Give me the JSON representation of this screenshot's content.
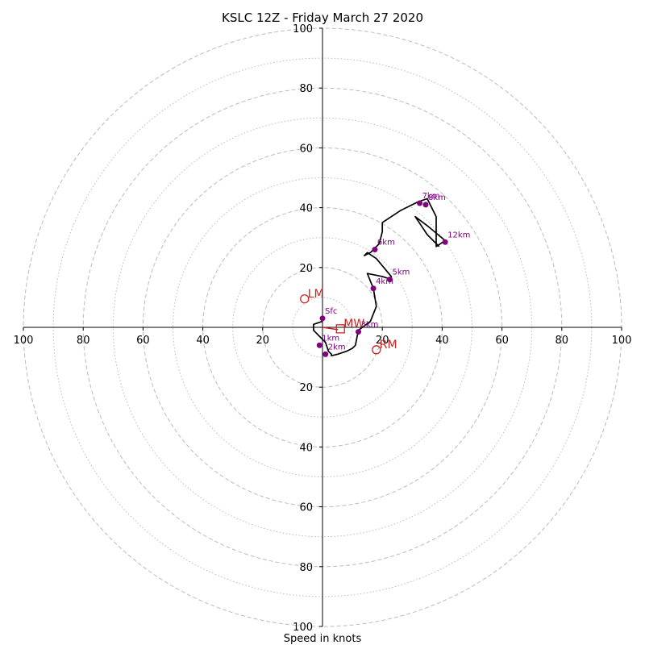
{
  "chart_data": {
    "type": "hodograph",
    "title": "KSLC 12Z - Friday March 27 2020",
    "xlabel": "Speed in knots",
    "ylabel": "",
    "range": 100,
    "ring_step_major": 20,
    "ring_step_minor": 10,
    "grid": true,
    "axis_ticks": {
      "x": [
        "100",
        "80",
        "60",
        "40",
        "20",
        "20",
        "40",
        "60",
        "80",
        "100"
      ],
      "y_top": [
        "100",
        "80",
        "60",
        "40",
        "20"
      ],
      "y_bottom": [
        "20",
        "40",
        "60",
        "80",
        "100"
      ]
    },
    "trace": [
      [
        0,
        -2
      ],
      [
        -3,
        -1
      ],
      [
        -3,
        1
      ],
      [
        -1,
        3
      ],
      [
        1,
        5
      ],
      [
        2,
        8
      ],
      [
        3,
        9
      ],
      [
        3,
        9.5
      ],
      [
        5,
        9
      ],
      [
        8,
        8
      ],
      [
        10,
        7
      ],
      [
        11,
        6
      ],
      [
        12,
        1
      ],
      [
        16,
        -2
      ],
      [
        18,
        -7
      ],
      [
        17,
        -13
      ],
      [
        15,
        -18
      ],
      [
        20,
        -17
      ],
      [
        23,
        -16
      ],
      [
        23,
        -17
      ],
      [
        18,
        -23
      ],
      [
        15,
        -25
      ],
      [
        14,
        -24
      ],
      [
        16,
        -25
      ],
      [
        19,
        -28
      ],
      [
        20,
        -32
      ],
      [
        20,
        -35
      ],
      [
        26,
        -39
      ],
      [
        30,
        -41
      ],
      [
        32,
        -42
      ],
      [
        35,
        -43
      ],
      [
        38,
        -37
      ],
      [
        38,
        -27
      ],
      [
        41,
        -29
      ],
      [
        35,
        -34
      ],
      [
        31,
        -37
      ],
      [
        35,
        -31
      ],
      [
        39,
        -27
      ]
    ],
    "height_points": [
      {
        "label": "Sfc",
        "x": 0,
        "y": -3
      },
      {
        "label": "1km",
        "x": -1,
        "y": 6
      },
      {
        "label": "2km",
        "x": 1,
        "y": 9
      },
      {
        "label": "3km",
        "x": 12,
        "y": 1.5
      },
      {
        "label": "4km",
        "x": 17,
        "y": -13
      },
      {
        "label": "5km",
        "x": 22.5,
        "y": -16
      },
      {
        "label": "6km",
        "x": 17.5,
        "y": -26
      },
      {
        "label": "7km",
        "x": 32.5,
        "y": -41.5
      },
      {
        "label": "8km",
        "x": 34.5,
        "y": -41
      },
      {
        "label": "12km",
        "x": 41,
        "y": -28.5
      }
    ],
    "motion_points": [
      {
        "label": "LM",
        "x": -6,
        "y": -9.5,
        "marker": "circle"
      },
      {
        "label": "RM",
        "x": 18,
        "y": 7.5,
        "marker": "circle"
      },
      {
        "label": "MW",
        "x": 6,
        "y": 0.5,
        "marker": "square"
      }
    ],
    "colors": {
      "trace": "#000000",
      "height_points": "#800080",
      "motion": "#cc2222",
      "grid": "#bbbbbb"
    }
  }
}
